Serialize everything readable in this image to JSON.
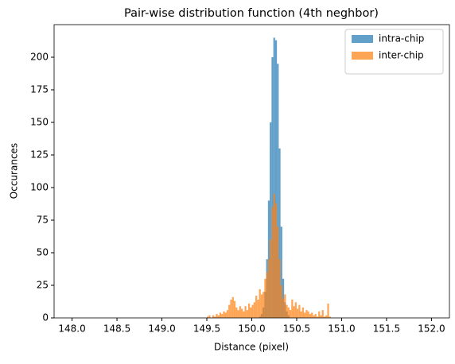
{
  "chart_data": {
    "type": "histogram",
    "title": "Pair-wise distribution function (4th neghbor)",
    "xlabel": "Distance (pixel)",
    "ylabel": "Occurances",
    "bins": [
      149.5,
      149.52,
      149.54,
      149.56,
      149.58,
      149.6,
      149.62,
      149.64,
      149.66,
      149.68,
      149.7,
      149.72,
      149.74,
      149.76,
      149.78,
      149.8,
      149.82,
      149.84,
      149.86,
      149.88,
      149.9,
      149.92,
      149.94,
      149.96,
      149.98,
      150.0,
      150.02,
      150.04,
      150.06,
      150.08,
      150.1,
      150.12,
      150.14,
      150.16,
      150.18,
      150.2,
      150.22,
      150.24,
      150.26,
      150.28,
      150.3,
      150.32,
      150.34,
      150.36,
      150.38,
      150.4,
      150.42,
      150.44,
      150.46,
      150.48,
      150.5,
      150.52,
      150.54,
      150.56,
      150.58,
      150.6,
      150.62,
      150.64,
      150.66,
      150.68,
      150.7,
      150.72,
      150.74,
      150.76,
      150.78,
      150.8,
      150.82,
      150.84,
      150.86,
      150.88,
      150.9
    ],
    "series": [
      {
        "name": "intra-chip",
        "color": "#1f77b4",
        "values": [
          0,
          0,
          0,
          0,
          0,
          0,
          0,
          0,
          0,
          0,
          0,
          0,
          0,
          0,
          0,
          0,
          0,
          0,
          0,
          0,
          0,
          0,
          0,
          0,
          0,
          0,
          0,
          0,
          0,
          1,
          3,
          8,
          20,
          45,
          90,
          150,
          200,
          215,
          213,
          195,
          130,
          70,
          30,
          12,
          5,
          2,
          0,
          0,
          0,
          0,
          0,
          0,
          0,
          0,
          0,
          0,
          0,
          0,
          0,
          0,
          0,
          0,
          0,
          0,
          0,
          0,
          0,
          0,
          0,
          0
        ]
      },
      {
        "name": "inter-chip",
        "color": "#ff7f0e",
        "values": [
          1,
          2,
          0,
          2,
          1,
          3,
          2,
          4,
          3,
          5,
          4,
          6,
          10,
          14,
          16,
          13,
          8,
          6,
          9,
          7,
          5,
          9,
          6,
          11,
          8,
          10,
          12,
          17,
          14,
          22,
          18,
          20,
          30,
          35,
          45,
          60,
          85,
          95,
          88,
          70,
          45,
          25,
          15,
          18,
          10,
          8,
          6,
          14,
          9,
          12,
          7,
          10,
          5,
          8,
          4,
          6,
          5,
          3,
          4,
          2,
          3,
          1,
          5,
          2,
          6,
          1,
          2,
          11,
          1,
          0
        ]
      }
    ],
    "xlim": [
      147.8,
      152.2
    ],
    "xticks": [
      {
        "value": 148,
        "label": "148.0"
      },
      {
        "value": 148.5,
        "label": "148.5"
      },
      {
        "value": 149,
        "label": "149.0"
      },
      {
        "value": 149.5,
        "label": "149.5"
      },
      {
        "value": 150,
        "label": "150.0"
      },
      {
        "value": 150.5,
        "label": "150.5"
      },
      {
        "value": 151,
        "label": "151.0"
      },
      {
        "value": 151.5,
        "label": "151.5"
      },
      {
        "value": 152,
        "label": "152.0"
      }
    ],
    "ylim": [
      0,
      225
    ],
    "yticks": [
      0,
      25,
      50,
      75,
      100,
      125,
      150,
      175,
      200
    ],
    "alpha": 0.7,
    "legend": "upper right",
    "grid": false
  }
}
